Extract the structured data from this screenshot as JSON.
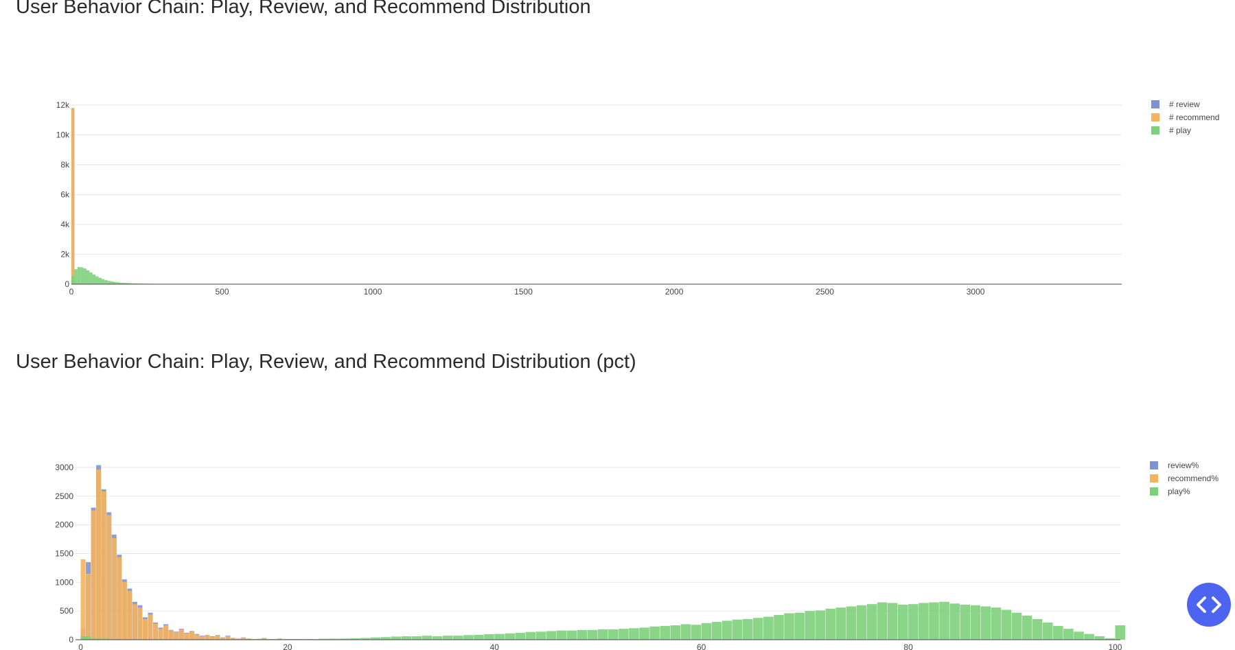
{
  "chart_data": [
    {
      "type": "bar",
      "title": "User Behavior Chain: Play, Review, and Recommend Distribution",
      "xlim": [
        0,
        3485
      ],
      "ylim": [
        0,
        12000
      ],
      "x_ticks": [
        0,
        500,
        1000,
        1500,
        2000,
        2500,
        3000
      ],
      "x_tick_labels": [
        "0",
        "500",
        "1000",
        "1500",
        "2000",
        "2500",
        "3000"
      ],
      "y_ticks": [
        0,
        2000,
        4000,
        6000,
        8000,
        10000,
        12000
      ],
      "y_tick_labels": [
        "0",
        "2k",
        "4k",
        "6k",
        "8k",
        "10k",
        "12k"
      ],
      "grid": true,
      "legend_position": "top-right",
      "bin_width": 10,
      "series": [
        {
          "name": "# review",
          "color": "#8093d0",
          "bins": [
            [
              0,
              11800
            ]
          ]
        },
        {
          "name": "# recommend",
          "color": "#f5b35c",
          "bins": [
            [
              0,
              11800
            ]
          ]
        },
        {
          "name": "# play",
          "color": "#7dd07a",
          "bins": [
            [
              0,
              550
            ],
            [
              10,
              1000
            ],
            [
              20,
              1150
            ],
            [
              30,
              1130
            ],
            [
              40,
              1050
            ],
            [
              50,
              920
            ],
            [
              60,
              780
            ],
            [
              70,
              640
            ],
            [
              80,
              520
            ],
            [
              90,
              420
            ],
            [
              100,
              340
            ],
            [
              110,
              270
            ],
            [
              120,
              220
            ],
            [
              130,
              180
            ],
            [
              140,
              150
            ],
            [
              150,
              125
            ],
            [
              160,
              100
            ],
            [
              170,
              85
            ],
            [
              180,
              75
            ],
            [
              190,
              65
            ],
            [
              200,
              55
            ],
            [
              210,
              48
            ],
            [
              220,
              42
            ],
            [
              230,
              38
            ],
            [
              240,
              34
            ],
            [
              250,
              30
            ],
            [
              260,
              27
            ],
            [
              270,
              24
            ],
            [
              280,
              22
            ],
            [
              290,
              20
            ],
            [
              300,
              18
            ],
            [
              320,
              16
            ],
            [
              340,
              15
            ],
            [
              360,
              14
            ],
            [
              380,
              13
            ],
            [
              400,
              12
            ],
            [
              420,
              11
            ],
            [
              440,
              10
            ],
            [
              460,
              10
            ],
            [
              480,
              9
            ],
            [
              500,
              9
            ],
            [
              520,
              8
            ],
            [
              540,
              8
            ],
            [
              560,
              8
            ],
            [
              580,
              7
            ],
            [
              600,
              7
            ],
            [
              620,
              7
            ],
            [
              640,
              6
            ],
            [
              660,
              6
            ],
            [
              680,
              6
            ],
            [
              700,
              6
            ],
            [
              720,
              5
            ],
            [
              740,
              5
            ],
            [
              760,
              5
            ],
            [
              780,
              5
            ],
            [
              800,
              5
            ],
            [
              850,
              4
            ],
            [
              900,
              4
            ],
            [
              950,
              4
            ],
            [
              1000,
              3
            ],
            [
              1050,
              3
            ],
            [
              1100,
              3
            ],
            [
              1150,
              3
            ],
            [
              1200,
              3
            ],
            [
              1300,
              2
            ],
            [
              1400,
              2
            ],
            [
              1500,
              2
            ],
            [
              1600,
              2
            ],
            [
              1700,
              2
            ],
            [
              1800,
              2
            ],
            [
              2000,
              2
            ],
            [
              2400,
              2
            ],
            [
              2800,
              2
            ],
            [
              3200,
              2
            ]
          ]
        }
      ]
    },
    {
      "type": "bar",
      "title": "User Behavior Chain: Play, Review, and Recommend Distribution (pct)",
      "xlim": [
        -0.5,
        100.5
      ],
      "ylim": [
        0,
        3000
      ],
      "x_ticks": [
        0,
        20,
        40,
        60,
        80,
        100
      ],
      "x_tick_labels": [
        "0",
        "20",
        "40",
        "60",
        "80",
        "100"
      ],
      "y_ticks": [
        0,
        500,
        1000,
        1500,
        2000,
        2500,
        3000
      ],
      "y_tick_labels": [
        "0",
        "500",
        "1000",
        "1500",
        "2000",
        "2500",
        "3000"
      ],
      "grid": true,
      "legend_position": "top-right",
      "bin_width": 0.5,
      "series": [
        {
          "name": "review%",
          "color": "#8093d0",
          "values": [
            200,
            1350,
            2300,
            3040,
            2620,
            2220,
            1830,
            1480,
            1050,
            890,
            660,
            600,
            390,
            470,
            300,
            210,
            270,
            170,
            140,
            190,
            120,
            150,
            100,
            70,
            80,
            60,
            80,
            40,
            70,
            30,
            20,
            40,
            20,
            10,
            15,
            30,
            10,
            10,
            20,
            8,
            10,
            8,
            10,
            6,
            10,
            6,
            8,
            5,
            6,
            5,
            6,
            5,
            6,
            4,
            5,
            4,
            5,
            4,
            5,
            3,
            4,
            3,
            4,
            3,
            3,
            3,
            3,
            3,
            3,
            3,
            3,
            3,
            3,
            3,
            3,
            3,
            3,
            3,
            3,
            3,
            3,
            3,
            3,
            3,
            3,
            3,
            3,
            3,
            3,
            3,
            3,
            3,
            3,
            3,
            3,
            3,
            3,
            3,
            3,
            3,
            3,
            3,
            3,
            3,
            3,
            3,
            3,
            3,
            3,
            3,
            3,
            3,
            3,
            3,
            3,
            3,
            3,
            3,
            3,
            3,
            3,
            3,
            3,
            3,
            3,
            3,
            3,
            3,
            3,
            3,
            3,
            3,
            3,
            3,
            3,
            3,
            3,
            3,
            3,
            3,
            3,
            3,
            3,
            3,
            3,
            3,
            3,
            3,
            3,
            3,
            3,
            3,
            3,
            3,
            3,
            3,
            3,
            3,
            3,
            3,
            3,
            3,
            3,
            3,
            3,
            3,
            3,
            3,
            3,
            3,
            3,
            3,
            3,
            3,
            3,
            3,
            3,
            3,
            3,
            3,
            3,
            3,
            3,
            3,
            3,
            3,
            3,
            3,
            3,
            3,
            3,
            3,
            3,
            3,
            3,
            3,
            3,
            3,
            3,
            3,
            3
          ]
        },
        {
          "name": "recommend%",
          "color": "#f5b35c",
          "values": [
            1400,
            1150,
            2250,
            2960,
            2580,
            2170,
            1770,
            1440,
            1010,
            850,
            620,
            560,
            360,
            440,
            280,
            190,
            250,
            160,
            130,
            180,
            110,
            140,
            90,
            60,
            70,
            50,
            70,
            35,
            60,
            25,
            18,
            35,
            18,
            9,
            13,
            28,
            9,
            9,
            18,
            7,
            9,
            7,
            9,
            5,
            9,
            5,
            7,
            4,
            5,
            4,
            5,
            4,
            5,
            3,
            4,
            3,
            4,
            3,
            4,
            2,
            3,
            2,
            3,
            2,
            2,
            2,
            2,
            2,
            2,
            2,
            2,
            2,
            2,
            2,
            2,
            2,
            2,
            2,
            2,
            2,
            2,
            2,
            2,
            2,
            2,
            2,
            2,
            2,
            2,
            2,
            2,
            2,
            2,
            2,
            2,
            2,
            2,
            2,
            2,
            2,
            2,
            2,
            2,
            2,
            2,
            2,
            2,
            2,
            2,
            2,
            2,
            2,
            2,
            2,
            2,
            2,
            2,
            2,
            2,
            2,
            2,
            2,
            2,
            2,
            2,
            2,
            2,
            2,
            2,
            2,
            2,
            2,
            2,
            2,
            2,
            2,
            2,
            2,
            2,
            2,
            2,
            2,
            2,
            2,
            2,
            2,
            2,
            2,
            2,
            2,
            2,
            2,
            2,
            2,
            2,
            2,
            2,
            2,
            2,
            2,
            2,
            2,
            2,
            2,
            2,
            2,
            2,
            2,
            2,
            2,
            2,
            2,
            2,
            2,
            2,
            2,
            2,
            2,
            2,
            2,
            2,
            2,
            2,
            2,
            2,
            2,
            2,
            2,
            2,
            2,
            2,
            2,
            2,
            2,
            2,
            2,
            2,
            2,
            2,
            2,
            2
          ]
        },
        {
          "name": "play%",
          "color": "#7dd07a",
          "x_start": 0,
          "bin_width": 1,
          "values": [
            60,
            20,
            15,
            12,
            10,
            10,
            10,
            10,
            10,
            10,
            10,
            10,
            10,
            10,
            10,
            10,
            10,
            10,
            10,
            10,
            10,
            10,
            10,
            15,
            18,
            20,
            25,
            30,
            40,
            45,
            55,
            60,
            60,
            70,
            60,
            70,
            70,
            80,
            85,
            95,
            100,
            110,
            120,
            135,
            140,
            150,
            160,
            160,
            170,
            170,
            180,
            180,
            190,
            200,
            210,
            230,
            240,
            250,
            270,
            260,
            290,
            310,
            330,
            350,
            360,
            380,
            400,
            430,
            460,
            470,
            500,
            510,
            540,
            560,
            580,
            600,
            620,
            650,
            640,
            610,
            620,
            640,
            650,
            660,
            630,
            610,
            600,
            580,
            560,
            520,
            470,
            420,
            360,
            300,
            240,
            190,
            140,
            100,
            60,
            25,
            250
          ]
        }
      ]
    }
  ]
}
